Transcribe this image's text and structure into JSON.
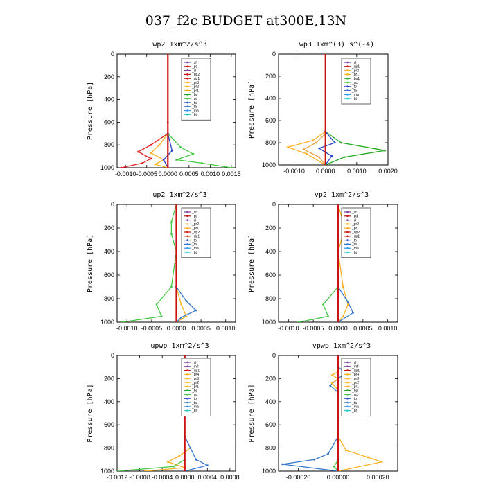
{
  "figure": {
    "title": "037_f2c  BUDGET at300E,13N"
  },
  "chart_data": [
    {
      "type": "line",
      "title": "wp2  1xm^2/s^3",
      "ylabel": "Pressure [hPa]",
      "ylim": [
        1000,
        0
      ],
      "yticks": [
        "0",
        "200",
        "400",
        "600",
        "800",
        "1000"
      ],
      "xlim": [
        -0.0012,
        0.0016
      ],
      "xticks": [
        {
          "v": -0.001,
          "t": "-0.0010"
        },
        {
          "v": -0.0005,
          "t": "-0.0005"
        },
        {
          "v": 0,
          "t": "0.0000"
        },
        {
          "v": 0.0005,
          "t": "0.0005"
        },
        {
          "v": 0.001,
          "t": "0.0010"
        },
        {
          "v": 0.0015,
          "t": "0.0015"
        }
      ],
      "legend": [
        "_sf",
        "_pd",
        "_cl",
        "_dp2",
        "_dp1",
        "_pr3",
        "_pr2",
        "_pr1",
        "_bp",
        "_ac",
        "_tp",
        "_ta",
        "_ma",
        "_bt"
      ],
      "series": [
        {
          "name": "_sf",
          "color": "#7b3fa0",
          "points": [
            [
              0,
              0
            ],
            [
              0,
              700
            ],
            [
              0,
              1000
            ]
          ]
        },
        {
          "name": "_pr1",
          "color": "#44c844",
          "points": [
            [
              0,
              700
            ],
            [
              0.0003,
              820
            ],
            [
              0.0006,
              880
            ],
            [
              0.0002,
              930
            ],
            [
              0.0008,
              960
            ],
            [
              0.0015,
              1000
            ]
          ]
        },
        {
          "name": "_pr2",
          "color": "#ffb020",
          "points": [
            [
              0,
              700
            ],
            [
              -0.0002,
              800
            ],
            [
              -0.0004,
              870
            ],
            [
              -0.0001,
              930
            ],
            [
              -0.0003,
              970
            ],
            [
              0,
              1000
            ]
          ]
        },
        {
          "name": "_dp1",
          "color": "#e02020",
          "points": [
            [
              0,
              700
            ],
            [
              -0.0004,
              800
            ],
            [
              -0.0007,
              860
            ],
            [
              -0.0004,
              920
            ],
            [
              -0.0006,
              960
            ],
            [
              -0.0011,
              1000
            ]
          ]
        },
        {
          "name": "_tp",
          "color": "#2244cc",
          "points": [
            [
              0,
              700
            ],
            [
              0.0001,
              850
            ],
            [
              -0.0001,
              930
            ],
            [
              0,
              1000
            ]
          ]
        },
        {
          "name": "_pd",
          "color": "#cc1111",
          "points": [
            [
              0,
              0
            ],
            [
              0,
              600
            ],
            [
              0,
              1000
            ]
          ]
        }
      ]
    },
    {
      "type": "line",
      "title": "wp3  1xm^(3) s^(-4)",
      "ylabel": "Pressure [hPa]",
      "ylim": [
        1000,
        0
      ],
      "yticks": [
        "0",
        "200",
        "400",
        "600",
        "800",
        "1000"
      ],
      "xlim": [
        -0.0015,
        0.002
      ],
      "xticks": [
        {
          "v": -0.001,
          "t": "-0.0010"
        },
        {
          "v": 0,
          "t": "0.0000"
        },
        {
          "v": 0.001,
          "t": "0.0010"
        },
        {
          "v": 0.002,
          "t": "0.0020"
        }
      ],
      "legend": [
        "_cl",
        "_dp1",
        "_pr2",
        "_pr1",
        "_bp1",
        "_ac",
        "_tp",
        "_ta",
        "_ma",
        "_bt"
      ],
      "series": [
        {
          "name": "_cl",
          "color": "#7b3fa0",
          "points": [
            [
              0,
              0
            ],
            [
              0,
              700
            ],
            [
              0,
              1000
            ]
          ]
        },
        {
          "name": "_pr1",
          "color": "#ffb020",
          "points": [
            [
              0,
              700
            ],
            [
              -0.0004,
              780
            ],
            [
              -0.0012,
              840
            ],
            [
              -0.0006,
              900
            ],
            [
              0,
              1000
            ]
          ]
        },
        {
          "name": "_pr2",
          "color": "#e8a040",
          "points": [
            [
              0,
              720
            ],
            [
              -0.0003,
              800
            ],
            [
              -0.0007,
              860
            ],
            [
              -0.0002,
              930
            ],
            [
              0,
              1000
            ]
          ]
        },
        {
          "name": "_bp1",
          "color": "#22aa22",
          "points": [
            [
              0,
              700
            ],
            [
              0.0005,
              800
            ],
            [
              0.0019,
              870
            ],
            [
              0.0006,
              930
            ],
            [
              0,
              1000
            ]
          ]
        },
        {
          "name": "_tp",
          "color": "#2244cc",
          "points": [
            [
              0,
              700
            ],
            [
              0.0003,
              800
            ],
            [
              -0.0002,
              850
            ],
            [
              0.0002,
              920
            ],
            [
              0,
              1000
            ]
          ]
        },
        {
          "name": "_dp1",
          "color": "#cc1111",
          "points": [
            [
              0,
              0
            ],
            [
              0,
              700
            ],
            [
              0,
              1000
            ]
          ]
        }
      ]
    },
    {
      "type": "line",
      "title": "up2  1xm^2/s^3",
      "ylabel": "Pressure [hPa]",
      "ylim": [
        1000,
        0
      ],
      "yticks": [
        "0",
        "200",
        "400",
        "600",
        "800",
        "1000"
      ],
      "xlim": [
        -0.0012,
        0.0012
      ],
      "xticks": [
        {
          "v": -0.001,
          "t": "-0.0010"
        },
        {
          "v": -0.0005,
          "t": "-0.0005"
        },
        {
          "v": 0,
          "t": "0.0000"
        },
        {
          "v": 0.0005,
          "t": "0.0005"
        },
        {
          "v": 0.001,
          "t": "0.0010"
        }
      ],
      "legend": [
        "_sf",
        "_pd",
        "_cl",
        "_pr2",
        "_pr1",
        "_dp2",
        "_dp1",
        "_tp",
        "_ta",
        "_ma",
        "_bt"
      ],
      "series": [
        {
          "name": "_pr1",
          "color": "#44c844",
          "points": [
            [
              0,
              0
            ],
            [
              -0.0001,
              150
            ],
            [
              -0.0001,
              250
            ],
            [
              0,
              400
            ],
            [
              -0.0001,
              700
            ],
            [
              -0.0004,
              850
            ],
            [
              -0.0003,
              950
            ],
            [
              -0.0011,
              1000
            ]
          ]
        },
        {
          "name": "_pr2",
          "color": "#ffb020",
          "points": [
            [
              0,
              700
            ],
            [
              0.0001,
              850
            ],
            [
              0.0002,
              950
            ],
            [
              0,
              1000
            ]
          ]
        },
        {
          "name": "_tp",
          "color": "#3377cc",
          "points": [
            [
              0,
              700
            ],
            [
              0.0002,
              820
            ],
            [
              0.0004,
              900
            ],
            [
              0.0001,
              960
            ],
            [
              0,
              1000
            ]
          ]
        },
        {
          "name": "_sf",
          "color": "#cc1111",
          "points": [
            [
              0,
              0
            ],
            [
              0,
              500
            ],
            [
              0,
              1000
            ]
          ]
        }
      ]
    },
    {
      "type": "line",
      "title": "vp2  1xm^2/s^3",
      "ylabel": "Pressure [hPa]",
      "ylim": [
        1000,
        0
      ],
      "yticks": [
        "0",
        "200",
        "400",
        "600",
        "800",
        "1000"
      ],
      "xlim": [
        -0.0012,
        0.0012
      ],
      "xticks": [
        {
          "v": -0.001,
          "t": "-0.0010"
        },
        {
          "v": -0.0005,
          "t": "-0.0005"
        },
        {
          "v": 0,
          "t": "0.0000"
        },
        {
          "v": 0.0005,
          "t": "0.0005"
        },
        {
          "v": 0.001,
          "t": "0.0010"
        }
      ],
      "legend": [
        "_sf",
        "_pd",
        "_cl",
        "_pr2",
        "_pr1",
        "_dp2",
        "_dp1",
        "_tp",
        "_ta",
        "_ma",
        "_bt"
      ],
      "series": [
        {
          "name": "_pr2",
          "color": "#ffb020",
          "points": [
            [
              0,
              0
            ],
            [
              0.0001,
              150
            ],
            [
              0.0001,
              250
            ],
            [
              0,
              400
            ],
            [
              0.0001,
              700
            ],
            [
              0.0002,
              850
            ],
            [
              0.0001,
              950
            ],
            [
              0,
              1000
            ]
          ]
        },
        {
          "name": "_pr1",
          "color": "#44c844",
          "points": [
            [
              0,
              700
            ],
            [
              -0.0003,
              850
            ],
            [
              -0.0002,
              950
            ],
            [
              -0.0008,
              1000
            ]
          ]
        },
        {
          "name": "_tp",
          "color": "#3377cc",
          "points": [
            [
              0,
              700
            ],
            [
              0.0002,
              830
            ],
            [
              0.0003,
              920
            ],
            [
              0,
              1000
            ]
          ]
        },
        {
          "name": "_sf",
          "color": "#cc1111",
          "points": [
            [
              0,
              0
            ],
            [
              0,
              500
            ],
            [
              0,
              1000
            ]
          ]
        }
      ]
    },
    {
      "type": "line",
      "title": "upwp  1xm^2/s^3",
      "ylabel": "Pressure [hPa]",
      "ylim": [
        1000,
        0
      ],
      "yticks": [
        "0",
        "200",
        "400",
        "600",
        "800",
        "1000"
      ],
      "xlim": [
        -0.0012,
        0.0009
      ],
      "xticks": [
        {
          "v": -0.0012,
          "t": "-0.0012"
        },
        {
          "v": -0.0008,
          "t": "-0.0008"
        },
        {
          "v": -0.0004,
          "t": "-0.0004"
        },
        {
          "v": 0,
          "t": "0.0000"
        },
        {
          "v": 0.0004,
          "t": "0.0004"
        },
        {
          "v": 0.0008,
          "t": "0.0008"
        }
      ],
      "legend": [
        "_cl",
        "_mfl",
        "_dp1",
        "_pr4",
        "_pr3",
        "_pr2",
        "_pr1",
        "_bp",
        "_ac",
        "_tp",
        "_ta",
        "_ma",
        "_bt"
      ],
      "series": [
        {
          "name": "_pr2",
          "color": "#ffb020",
          "points": [
            [
              0,
              700
            ],
            [
              0.0001,
              800
            ],
            [
              -0.0001,
              870
            ],
            [
              -0.0003,
              920
            ],
            [
              0,
              970
            ],
            [
              -0.0007,
              1000
            ]
          ]
        },
        {
          "name": "_tp",
          "color": "#3377cc",
          "points": [
            [
              0,
              700
            ],
            [
              0.0001,
              800
            ],
            [
              0.0002,
              900
            ],
            [
              0.0004,
              950
            ],
            [
              0,
              1000
            ]
          ]
        },
        {
          "name": "_bp",
          "color": "#44c844",
          "points": [
            [
              0,
              900
            ],
            [
              -0.0002,
              960
            ],
            [
              -0.0012,
              1000
            ]
          ]
        },
        {
          "name": "_cl",
          "color": "#7b3fa0",
          "points": [
            [
              0,
              0
            ],
            [
              0,
              700
            ],
            [
              0,
              1000
            ]
          ]
        },
        {
          "name": "_mfl",
          "color": "#cc1111",
          "points": [
            [
              0,
              0
            ],
            [
              0,
              500
            ],
            [
              0,
              1000
            ]
          ]
        }
      ]
    },
    {
      "type": "line",
      "title": "vpwp  1xm^2/s^3",
      "ylabel": "Pressure [hPa]",
      "ylim": [
        1000,
        0
      ],
      "yticks": [
        "0",
        "200",
        "400",
        "600",
        "800",
        "1000"
      ],
      "xlim": [
        -0.0003,
        0.0003
      ],
      "xticks": [
        {
          "v": -0.0002,
          "t": "-0.00020"
        },
        {
          "v": 0,
          "t": "0.00000"
        },
        {
          "v": 0.0002,
          "t": "0.00020"
        }
      ],
      "legend": [
        "_cl",
        "_mfl",
        "_dp1",
        "_pr4",
        "_pr3",
        "_pr2",
        "_pr1",
        "_bp",
        "_ac",
        "_tp",
        "_ta",
        "_ma",
        "_bt"
      ],
      "series": [
        {
          "name": "_tp",
          "color": "#3377cc",
          "points": [
            [
              0,
              0
            ],
            [
              0,
              100
            ],
            [
              4e-05,
              150
            ],
            [
              0,
              200
            ],
            [
              -4e-05,
              260
            ],
            [
              0,
              320
            ],
            [
              0,
              700
            ],
            [
              -5e-05,
              850
            ],
            [
              -0.00012,
              900
            ],
            [
              -0.00028,
              940
            ],
            [
              0,
              1000
            ]
          ]
        },
        {
          "name": "_pr2",
          "color": "#ffb020",
          "points": [
            [
              0,
              0
            ],
            [
              0,
              140
            ],
            [
              -3e-05,
              170
            ],
            [
              0,
              200
            ],
            [
              -3e-05,
              240
            ],
            [
              0,
              300
            ],
            [
              0,
              700
            ],
            [
              4e-05,
              820
            ],
            [
              0.00015,
              880
            ],
            [
              0.00022,
              920
            ],
            [
              0,
              1000
            ]
          ]
        },
        {
          "name": "_ac",
          "color": "#44c844",
          "points": [
            [
              0,
              700
            ],
            [
              0,
              900
            ],
            [
              -2e-05,
              960
            ],
            [
              0,
              1000
            ]
          ]
        },
        {
          "name": "_cl",
          "color": "#7b3fa0",
          "points": [
            [
              0,
              0
            ],
            [
              0,
              700
            ],
            [
              0,
              1000
            ]
          ]
        }
      ]
    }
  ],
  "legend_colors": {
    "_sf": "#7b3fa0",
    "_cl": "#7b3fa0",
    "_mfl": "#7b3fa0",
    "_pd": "#cc1111",
    "_dp1": "#cc1111",
    "_dp2": "#cc1111",
    "_pr1": "#ffb020",
    "_pr2": "#ffb020",
    "_pr3": "#ffb020",
    "_pr4": "#ffb020",
    "_bp": "#22aa22",
    "_bp1": "#22aa22",
    "_ac": "#44c844",
    "_tp": "#2244cc",
    "_ta": "#3377cc",
    "_ma": "#3399ff",
    "_bt": "#33cccc"
  }
}
